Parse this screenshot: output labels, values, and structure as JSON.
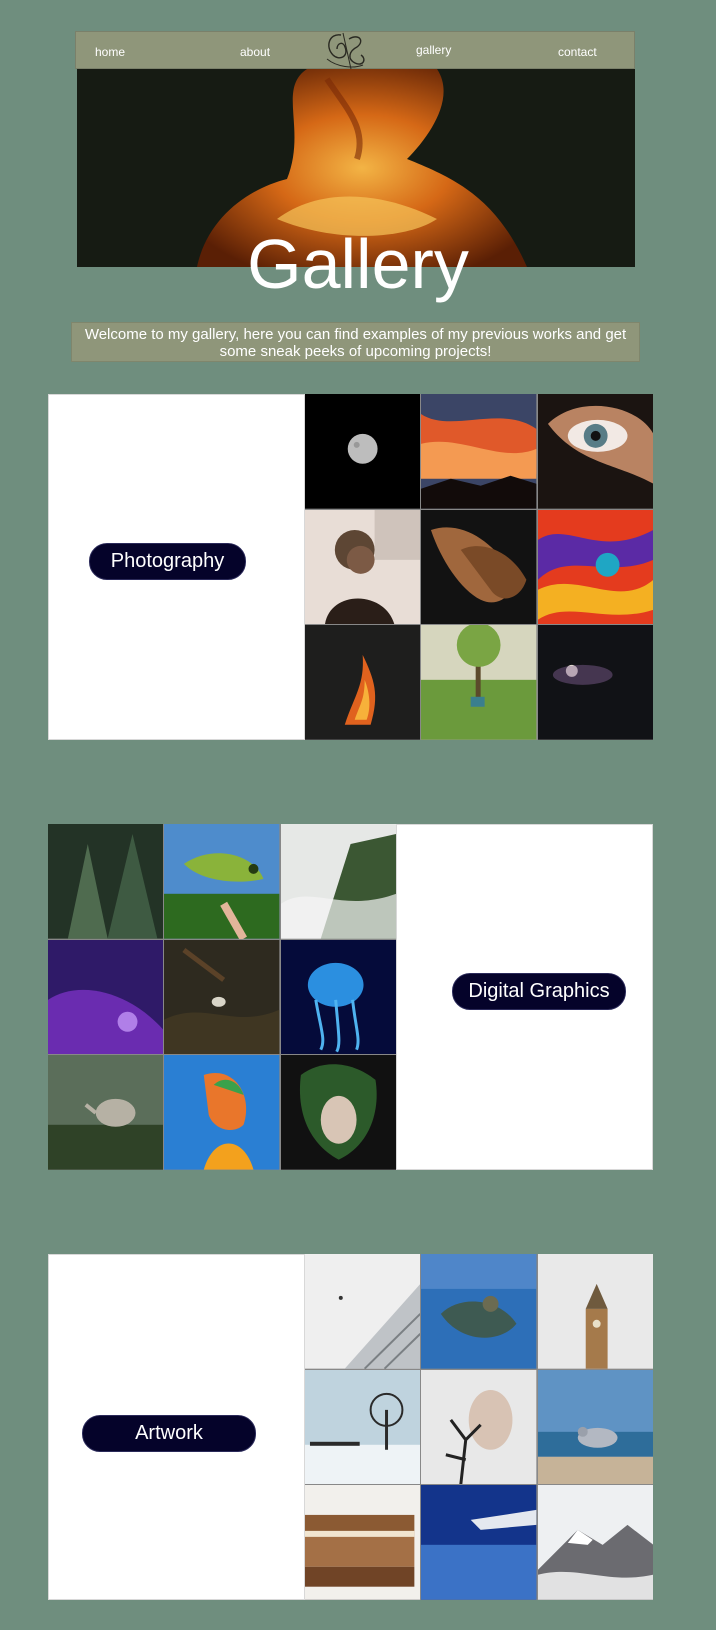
{
  "nav": {
    "items": [
      "home",
      "about",
      "gallery",
      "contact"
    ]
  },
  "hero": {
    "title": "Gallery"
  },
  "welcome": {
    "text": "Welcome to my gallery, here you can find examples of my previous works and get some sneak peeks of upcoming projects!"
  },
  "sections": [
    {
      "label": "Photography"
    },
    {
      "label": "Digital Graphics"
    },
    {
      "label": "Artwork"
    }
  ],
  "colors": {
    "background": "#6f8e7e",
    "nav": "#8f967a",
    "pill": "#05032a"
  }
}
